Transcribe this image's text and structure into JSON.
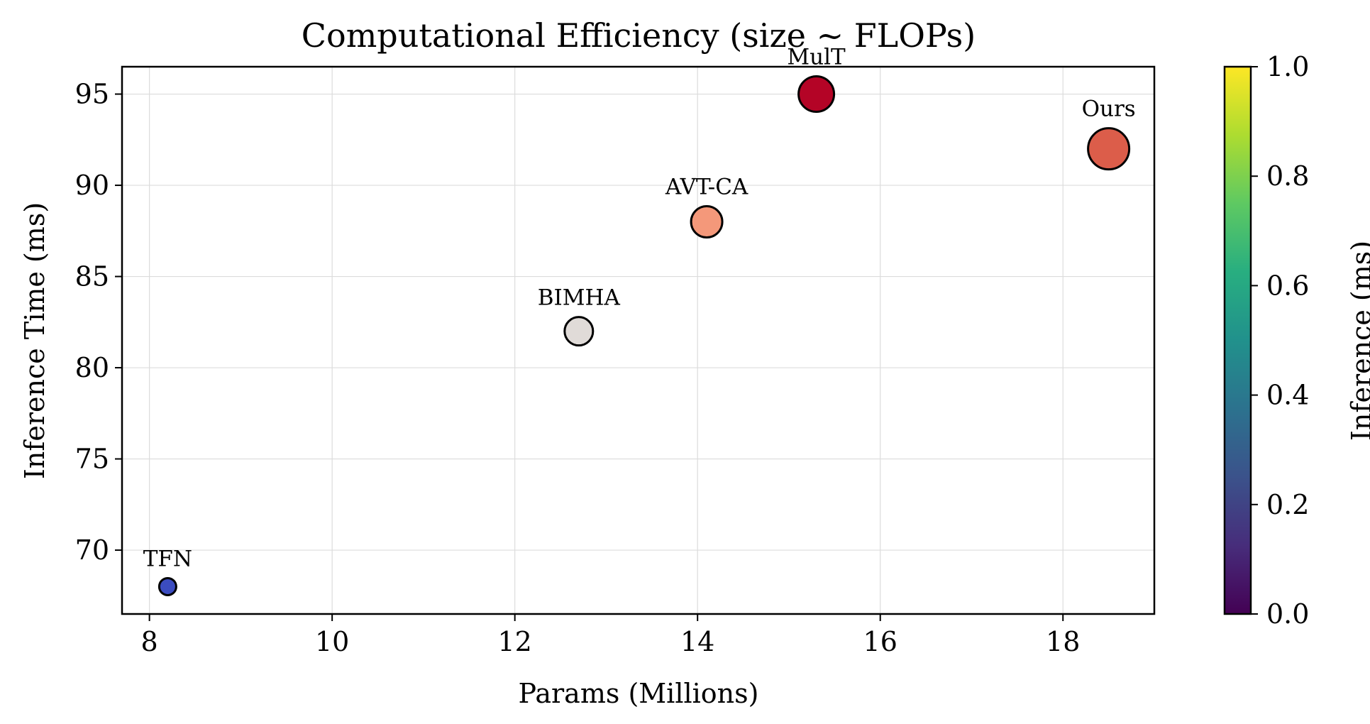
{
  "chart_data": {
    "type": "scatter",
    "title": "Computational Efficiency (size ~ FLOPs)",
    "xlabel": "Params (Millions)",
    "ylabel": "Inference Time (ms)",
    "xlim": [
      7.7,
      19.0
    ],
    "ylim": [
      66.5,
      96.5
    ],
    "xticks": [
      8,
      10,
      12,
      14,
      16,
      18
    ],
    "yticks": [
      70,
      75,
      80,
      85,
      90,
      95
    ],
    "grid": true,
    "points": [
      {
        "label": "TFN",
        "x": 8.2,
        "y": 68,
        "color": "#3b4cc0",
        "size_rank": 1
      },
      {
        "label": "BIMHA",
        "x": 12.7,
        "y": 82,
        "color": "#e0dbd8",
        "size_rank": 2
      },
      {
        "label": "AVT-CA",
        "x": 14.1,
        "y": 88,
        "color": "#f4987a",
        "size_rank": 3
      },
      {
        "label": "MulT",
        "x": 15.3,
        "y": 95,
        "color": "#b40426",
        "size_rank": 4
      },
      {
        "label": "Ours",
        "x": 18.5,
        "y": 92,
        "color": "#dc5d4a",
        "size_rank": 5
      }
    ],
    "colorbar": {
      "label": "Inference (ms)",
      "range": [
        0.0,
        1.0
      ],
      "ticks": [
        "0.0",
        "0.2",
        "0.4",
        "0.6",
        "0.8",
        "1.0"
      ],
      "colormap": "viridis"
    }
  }
}
